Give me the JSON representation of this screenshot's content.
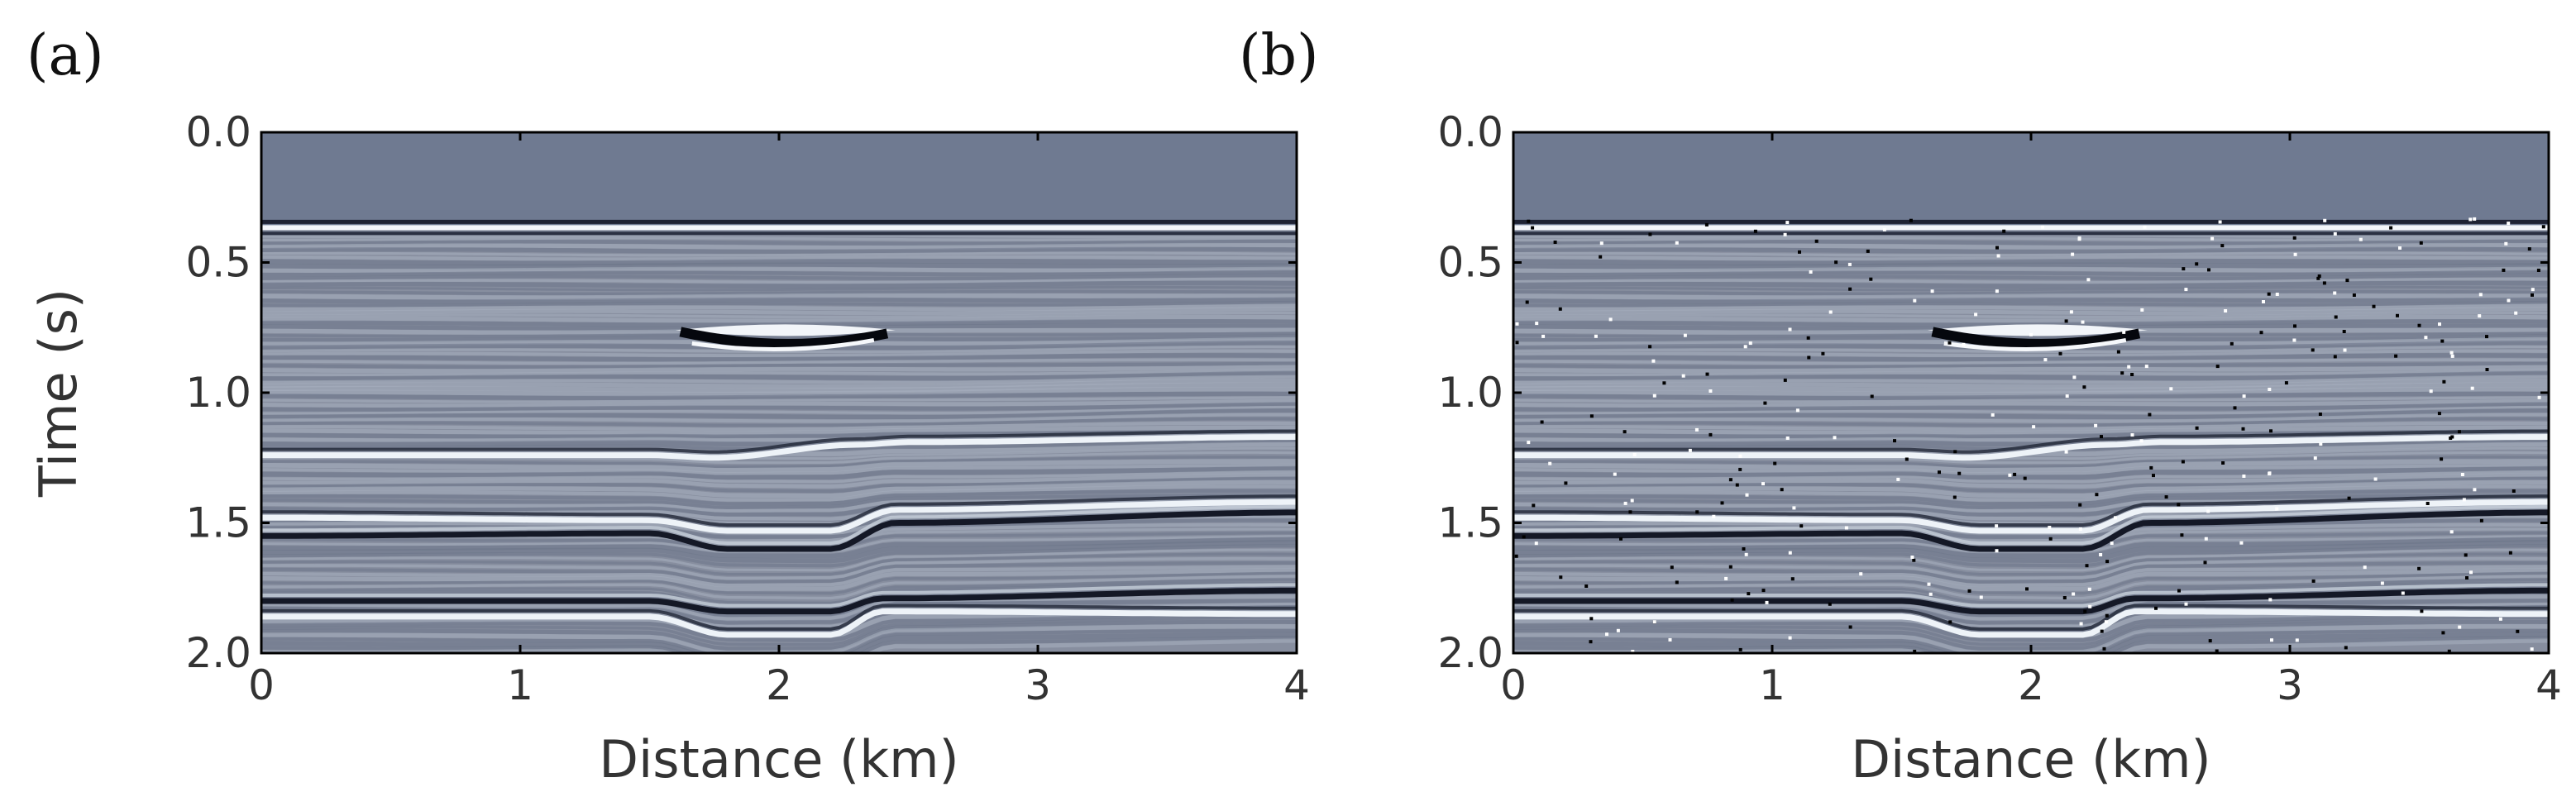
{
  "figure": {
    "panels": [
      "(a)",
      "(b)"
    ]
  },
  "chart_data": [
    {
      "type": "heatmap",
      "panel_label": "(a)",
      "xlabel": "Distance (km)",
      "ylabel": "Time (s)",
      "xlim": [
        0,
        4
      ],
      "ylim": [
        2.0,
        0.0
      ],
      "xticks": [
        "0",
        "1",
        "2",
        "3",
        "4"
      ],
      "yticks": [
        "0.0",
        "0.5",
        "1.0",
        "1.5",
        "2.0"
      ],
      "background_color": "#6f7a91",
      "seafloor_time": 0.36,
      "lens": {
        "x_start": 1.6,
        "x_end": 2.45,
        "time": 0.76
      },
      "reflectors": [
        {
          "x": [
            0,
            1.5,
            1.75,
            2.3,
            2.5,
            4
          ],
          "t": [
            1.24,
            1.24,
            1.25,
            1.2,
            1.19,
            1.17
          ],
          "polarity": "bright"
        },
        {
          "x": [
            0,
            1.5,
            1.8,
            2.2,
            2.45,
            4
          ],
          "t": [
            1.48,
            1.49,
            1.53,
            1.53,
            1.45,
            1.42
          ],
          "polarity": "bright"
        },
        {
          "x": [
            0,
            1.5,
            1.8,
            2.2,
            2.45,
            4
          ],
          "t": [
            1.55,
            1.54,
            1.6,
            1.6,
            1.5,
            1.46
          ],
          "polarity": "dark"
        },
        {
          "x": [
            0,
            1.5,
            1.8,
            2.2,
            2.4,
            4
          ],
          "t": [
            1.8,
            1.8,
            1.84,
            1.84,
            1.79,
            1.76
          ],
          "polarity": "dark"
        },
        {
          "x": [
            0,
            1.5,
            1.8,
            2.2,
            2.4,
            4
          ],
          "t": [
            1.86,
            1.86,
            1.93,
            1.93,
            1.84,
            1.85
          ],
          "polarity": "bright"
        }
      ],
      "noise_points": 0
    },
    {
      "type": "heatmap",
      "panel_label": "(b)",
      "xlabel": "Distance (km)",
      "ylabel": "",
      "xlim": [
        0,
        4
      ],
      "ylim": [
        2.0,
        0.0
      ],
      "xticks": [
        "0",
        "1",
        "2",
        "3",
        "4"
      ],
      "yticks": [
        "0.0",
        "0.5",
        "1.0",
        "1.5",
        "2.0"
      ],
      "background_color": "#6f7a91",
      "seafloor_time": 0.36,
      "lens": {
        "x_start": 1.6,
        "x_end": 2.45,
        "time": 0.76
      },
      "reflectors": [
        {
          "x": [
            0,
            1.5,
            1.75,
            2.3,
            2.5,
            4
          ],
          "t": [
            1.24,
            1.24,
            1.25,
            1.2,
            1.19,
            1.17
          ],
          "polarity": "bright"
        },
        {
          "x": [
            0,
            1.5,
            1.8,
            2.2,
            2.45,
            4
          ],
          "t": [
            1.48,
            1.49,
            1.53,
            1.53,
            1.45,
            1.42
          ],
          "polarity": "bright"
        },
        {
          "x": [
            0,
            1.5,
            1.8,
            2.2,
            2.45,
            4
          ],
          "t": [
            1.55,
            1.54,
            1.6,
            1.6,
            1.5,
            1.46
          ],
          "polarity": "dark"
        },
        {
          "x": [
            0,
            1.5,
            1.8,
            2.2,
            2.4,
            4
          ],
          "t": [
            1.8,
            1.8,
            1.84,
            1.84,
            1.79,
            1.76
          ],
          "polarity": "dark"
        },
        {
          "x": [
            0,
            1.5,
            1.8,
            2.2,
            2.4,
            4
          ],
          "t": [
            1.86,
            1.86,
            1.93,
            1.93,
            1.84,
            1.85
          ],
          "polarity": "bright"
        }
      ],
      "noise_points": 320
    }
  ]
}
